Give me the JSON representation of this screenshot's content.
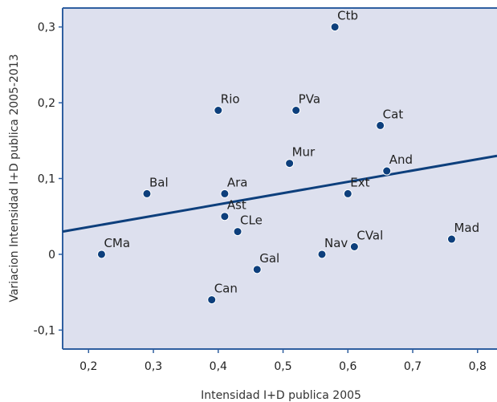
{
  "chart_data": {
    "type": "scatter",
    "xlabel": "Intensidad I+D publica 2005",
    "ylabel": "Variacion Intensidad I+D publica 2005-2013",
    "xlim": [
      0.16,
      0.83
    ],
    "ylim": [
      -0.125,
      0.325
    ],
    "x_ticks": [
      0.2,
      0.3,
      0.4,
      0.5,
      0.6,
      0.7,
      0.8
    ],
    "x_tick_labels": [
      "0,2",
      "0,3",
      "0,4",
      "0,5",
      "0,6",
      "0,7",
      "0,8"
    ],
    "y_ticks": [
      -0.1,
      0,
      0.1,
      0.2,
      0.3
    ],
    "y_tick_labels": [
      "-0,1",
      "0",
      "0,1",
      "0,2",
      "0,3"
    ],
    "grid": false,
    "points": [
      {
        "label": "Ctb",
        "x": 0.58,
        "y": 0.3
      },
      {
        "label": "Rio",
        "x": 0.4,
        "y": 0.19
      },
      {
        "label": "PVa",
        "x": 0.52,
        "y": 0.19
      },
      {
        "label": "Cat",
        "x": 0.65,
        "y": 0.17
      },
      {
        "label": "Mur",
        "x": 0.51,
        "y": 0.12
      },
      {
        "label": "And",
        "x": 0.66,
        "y": 0.11
      },
      {
        "label": "Bal",
        "x": 0.29,
        "y": 0.08
      },
      {
        "label": "Ara",
        "x": 0.41,
        "y": 0.08
      },
      {
        "label": "Ext",
        "x": 0.6,
        "y": 0.08
      },
      {
        "label": "Ast",
        "x": 0.41,
        "y": 0.05
      },
      {
        "label": "CLe",
        "x": 0.43,
        "y": 0.03
      },
      {
        "label": "Mad",
        "x": 0.76,
        "y": 0.02
      },
      {
        "label": "CMa",
        "x": 0.22,
        "y": 0.0
      },
      {
        "label": "Nav",
        "x": 0.56,
        "y": 0.0
      },
      {
        "label": "CVal",
        "x": 0.61,
        "y": 0.01
      },
      {
        "label": "Gal",
        "x": 0.46,
        "y": -0.02
      },
      {
        "label": "Can",
        "x": 0.39,
        "y": -0.06
      }
    ],
    "trendline": {
      "x": [
        0.16,
        0.83
      ],
      "y": [
        0.03,
        0.13
      ]
    },
    "colors": {
      "plot_background": "#dde0ee",
      "frame": "#2f5fa0",
      "marker": "#0d3f7c",
      "trendline": "#0d3f7c"
    }
  }
}
